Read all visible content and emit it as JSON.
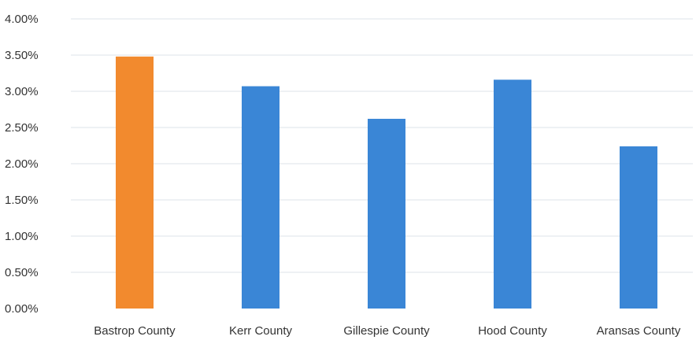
{
  "chart_data": {
    "type": "bar",
    "categories": [
      "Bastrop County",
      "Kerr County",
      "Gillespie County",
      "Hood County",
      "Aransas County"
    ],
    "values": [
      3.48,
      3.07,
      2.62,
      3.16,
      2.24
    ],
    "highlight_index": 0,
    "colors": {
      "highlight": "#F28A2E",
      "default": "#3A86D6"
    },
    "ylim": [
      0,
      4.0
    ],
    "yticks": [
      "0.00%",
      "0.50%",
      "1.00%",
      "1.50%",
      "2.00%",
      "2.50%",
      "3.00%",
      "3.50%",
      "4.00%"
    ],
    "ytick_values": [
      0,
      0.5,
      1.0,
      1.5,
      2.0,
      2.5,
      3.0,
      3.5,
      4.0
    ],
    "title": "",
    "xlabel": "",
    "ylabel": "",
    "grid": true,
    "legend": false
  }
}
